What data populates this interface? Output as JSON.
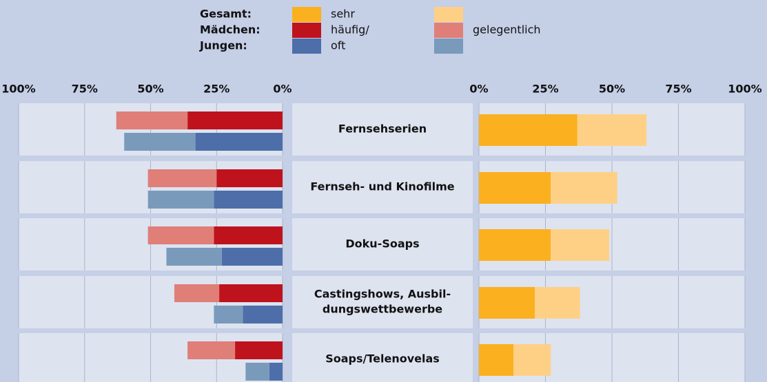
{
  "chart_data": {
    "type": "butterfly-bar",
    "categories": [
      [
        "Fernsehserien"
      ],
      [
        "Fernseh- und Kinofilme"
      ],
      [
        "Doku-Soaps"
      ],
      [
        "Castingshows, Ausbil-",
        "dungswettbewerbe"
      ],
      [
        "Soaps/Telenovelas"
      ]
    ],
    "levels": [
      [
        "sehr",
        "häufig/",
        "oft"
      ],
      [
        "gelegentlich"
      ]
    ],
    "groups": [
      {
        "name": "Gesamt:",
        "side": "right",
        "colors": [
          "#fbb01f",
          "#fed086"
        ],
        "values": [
          [
            37,
            27,
            27,
            21,
            13
          ],
          [
            26,
            25,
            22,
            17,
            14
          ]
        ]
      },
      {
        "name": "Mädchen:",
        "side": "left",
        "colors": [
          "#be131d",
          "#df7f78"
        ],
        "values": [
          [
            36,
            25,
            26,
            24,
            18
          ],
          [
            27,
            26,
            25,
            17,
            18
          ]
        ]
      },
      {
        "name": "Jungen:",
        "side": "left",
        "colors": [
          "#4d6ea9",
          "#7a9abb"
        ],
        "values": [
          [
            33,
            26,
            23,
            15,
            5
          ],
          [
            27,
            25,
            21,
            11,
            9
          ]
        ]
      }
    ],
    "left": {
      "xlim": [
        100,
        0
      ],
      "xticks": [
        {
          "value": 100,
          "label": "100%"
        },
        {
          "value": 75,
          "label": "75%"
        },
        {
          "value": 50,
          "label": "50%"
        },
        {
          "value": 25,
          "label": "25%"
        },
        {
          "value": 0,
          "label": "0%"
        }
      ]
    },
    "right": {
      "xlim": [
        0,
        100
      ],
      "xticks": [
        {
          "value": 0,
          "label": "0%"
        },
        {
          "value": 25,
          "label": "25%"
        },
        {
          "value": 50,
          "label": "50%"
        },
        {
          "value": 75,
          "label": "75%"
        },
        {
          "value": 100,
          "label": "100%"
        }
      ]
    },
    "grid": true
  }
}
